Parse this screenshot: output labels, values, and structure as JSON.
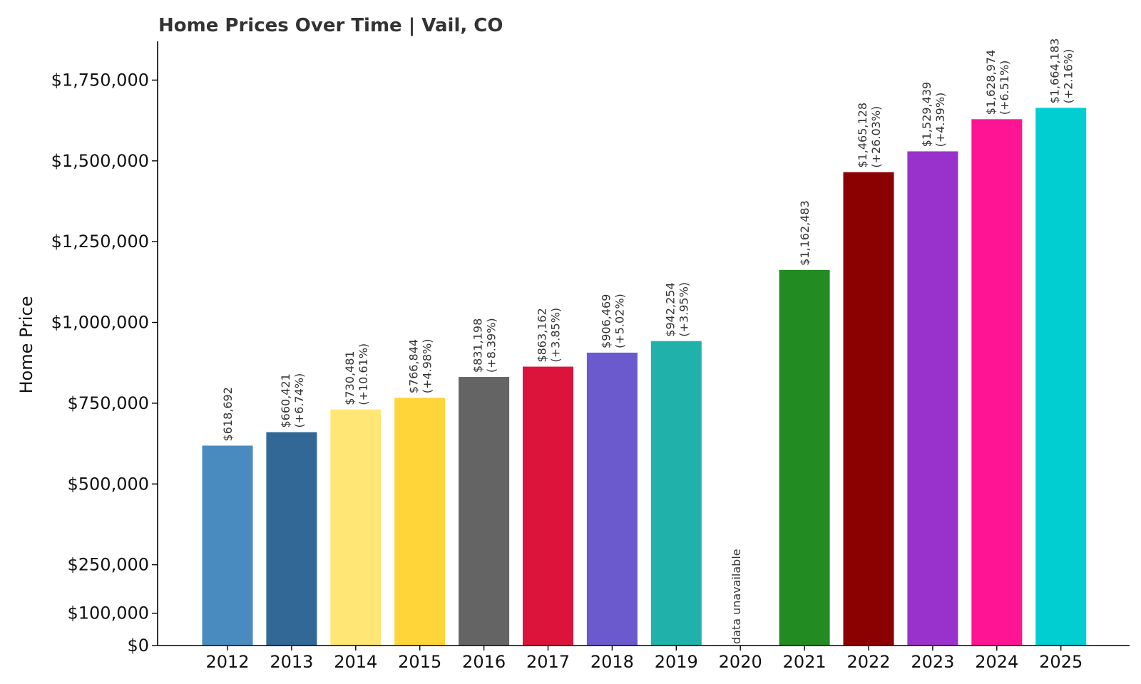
{
  "chart_data": {
    "type": "bar",
    "title": "Home Prices Over Time | Vail, CO",
    "xlabel": "",
    "ylabel": "Home Price",
    "ylim": [
      0,
      1870000
    ],
    "yticks": [
      0,
      100000,
      250000,
      500000,
      750000,
      1000000,
      1250000,
      1500000,
      1750000
    ],
    "ytick_labels": [
      "$0",
      "$100,000",
      "$250,000",
      "$500,000",
      "$750,000",
      "$1,000,000",
      "$1,250,000",
      "$1,500,000",
      "$1,750,000"
    ],
    "grid": false,
    "legend": "none",
    "categories": [
      "2012",
      "2013",
      "2014",
      "2015",
      "2016",
      "2017",
      "2018",
      "2019",
      "2020",
      "2021",
      "2022",
      "2023",
      "2024",
      "2025"
    ],
    "values": [
      618692,
      660421,
      730481,
      766844,
      831198,
      863162,
      906469,
      942254,
      null,
      1162483,
      1465128,
      1529439,
      1628974,
      1664183
    ],
    "value_labels": [
      "$618,692",
      "$660,421",
      "$730,481",
      "$766,844",
      "$831,198",
      "$863,162",
      "$906,469",
      "$942,254",
      "",
      "$1,162,483",
      "$1,465,128",
      "$1,529,439",
      "$1,628,974",
      "$1,664,183"
    ],
    "change_labels": [
      "",
      "(+6.74%)",
      "(+10.61%)",
      "(+4.98%)",
      "(+8.39%)",
      "(+3.85%)",
      "(+5.02%)",
      "(+3.95%)",
      "",
      "",
      "(+26.03%)",
      "(+4.39%)",
      "(+6.51%)",
      "(+2.16%)"
    ],
    "missing_label": "data unavailable",
    "colors": [
      "#4a8bbf",
      "#326896",
      "#ffe675",
      "#ffd53a",
      "#646464",
      "#dc143c",
      "#6a5acd",
      "#20b2aa",
      "#ffffff",
      "#228b22",
      "#8b0000",
      "#9932cc",
      "#ff1493",
      "#00ced1"
    ]
  }
}
